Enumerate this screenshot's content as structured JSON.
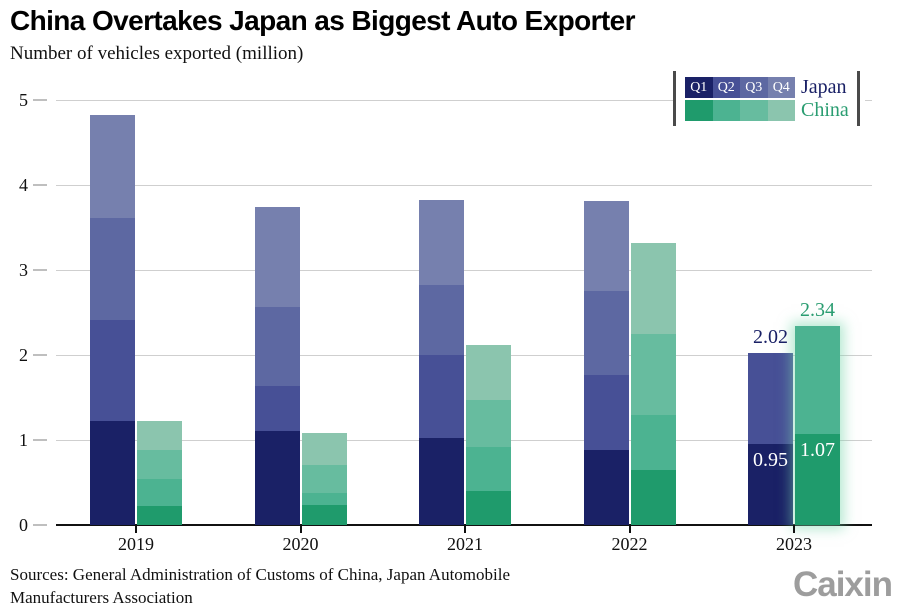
{
  "header": {
    "title": "China Overtakes Japan as Biggest Auto Exporter",
    "subtitle": "Number of vehicles exported (million)"
  },
  "legend": {
    "quarter_labels": [
      "Q1",
      "Q2",
      "Q3",
      "Q4"
    ],
    "entries": [
      "Japan",
      "China"
    ]
  },
  "chart_data": {
    "type": "bar",
    "stacked": true,
    "grid": true,
    "legend_position": "top-right",
    "title": "China Overtakes Japan as Biggest Auto Exporter",
    "ylabel": "Number of vehicles exported (million)",
    "ylim": [
      0,
      5
    ],
    "yticks": [
      0,
      1,
      2,
      3,
      4,
      5
    ],
    "categories": [
      "2019",
      "2020",
      "2021",
      "2022",
      "2023"
    ],
    "quarters": [
      "Q1",
      "Q2",
      "Q3",
      "Q4"
    ],
    "series": [
      {
        "name": "Japan",
        "accent": "#1a2166",
        "colors": [
          "#1a2166",
          "#475096",
          "#5d68a2",
          "#7680ae"
        ],
        "values_by_quarter": [
          [
            1.22,
            1.19,
            1.2,
            1.21
          ],
          [
            1.1,
            0.54,
            0.92,
            1.18
          ],
          [
            1.02,
            0.98,
            0.82,
            1.0
          ],
          [
            0.88,
            0.88,
            0.99,
            1.06
          ],
          [
            0.95,
            1.07
          ]
        ],
        "totals": [
          4.82,
          3.74,
          3.82,
          3.81,
          2.02
        ]
      },
      {
        "name": "China",
        "accent": "#2a9d71",
        "colors": [
          "#1f9b6c",
          "#4cb391",
          "#67bc9f",
          "#8bc5ae"
        ],
        "values_by_quarter": [
          [
            0.22,
            0.32,
            0.34,
            0.34
          ],
          [
            0.24,
            0.14,
            0.33,
            0.37
          ],
          [
            0.4,
            0.52,
            0.55,
            0.65
          ],
          [
            0.65,
            0.64,
            0.96,
            1.07
          ],
          [
            1.07,
            1.27
          ]
        ],
        "totals": [
          1.22,
          1.08,
          2.12,
          3.32,
          2.34
        ]
      }
    ],
    "labels": [
      {
        "series": "Japan",
        "year": "2023",
        "text": "2.02",
        "placement": "above-bar"
      },
      {
        "series": "Japan",
        "year": "2023",
        "text": "0.95",
        "placement": "inside-q1"
      },
      {
        "series": "China",
        "year": "2023",
        "text": "2.34",
        "placement": "above-bar"
      },
      {
        "series": "China",
        "year": "2023",
        "text": "1.07",
        "placement": "inside-q1"
      }
    ],
    "highlight": {
      "series": "China",
      "category": "2023"
    }
  },
  "footer": {
    "sources_line1": "Sources: General Administration of Customs of China, Japan Automobile",
    "sources_line2": "Manufacturers Association",
    "logo": "Caixin"
  }
}
